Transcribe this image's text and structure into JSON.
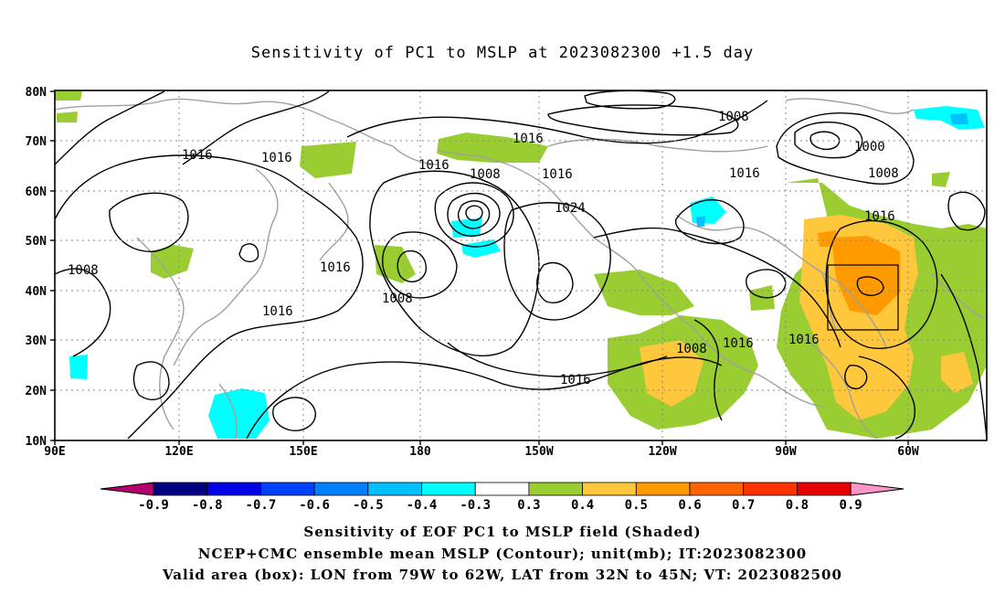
{
  "title": "Sensitivity of PC1 to MSLP at 2023082300 +1.5 day",
  "lat_ticks": [
    "80N",
    "70N",
    "60N",
    "50N",
    "40N",
    "30N",
    "20N",
    "10N"
  ],
  "lon_ticks": [
    "90E",
    "120E",
    "150E",
    "180",
    "150W",
    "120W",
    "90W",
    "60W"
  ],
  "contour_labels": [
    "1008",
    "1016",
    "1016",
    "1016",
    "1008",
    "1016",
    "1016",
    "1024",
    "1008",
    "1016",
    "1008",
    "1000",
    "1008",
    "1016",
    "1016",
    "1008",
    "1016",
    "1016",
    "1008",
    "1016",
    "1016"
  ],
  "colorbar": {
    "labels": [
      "-0.9",
      "-0.8",
      "-0.7",
      "-0.6",
      "-0.5",
      "-0.4",
      "-0.3",
      "0.3",
      "0.4",
      "0.5",
      "0.6",
      "0.7",
      "0.8",
      "0.9"
    ],
    "colors": [
      "#000080",
      "#0000e6",
      "#0040ff",
      "#0080ff",
      "#00c0ff",
      "#00ffff",
      "#ffffff",
      "#9acd32",
      "#ffc83c",
      "#ff9b00",
      "#ff6400",
      "#ff3200",
      "#e60000"
    ],
    "left_arrow_color": "#b4006e",
    "right_arrow_color": "#ff96c8"
  },
  "valid_box": {
    "lon_w": "79W",
    "lon_e": "62W",
    "lat_s": "32N",
    "lat_n": "45N"
  },
  "footer": {
    "line1": "Sensitivity of EOF PC1 to MSLP field (Shaded)",
    "line2": "NCEP+CMC ensemble mean MSLP (Contour); unit(mb); IT:2023082300",
    "line3": "Valid area (box): LON from 79W to 62W, LAT from 32N to 45N; VT: 2023082500"
  }
}
